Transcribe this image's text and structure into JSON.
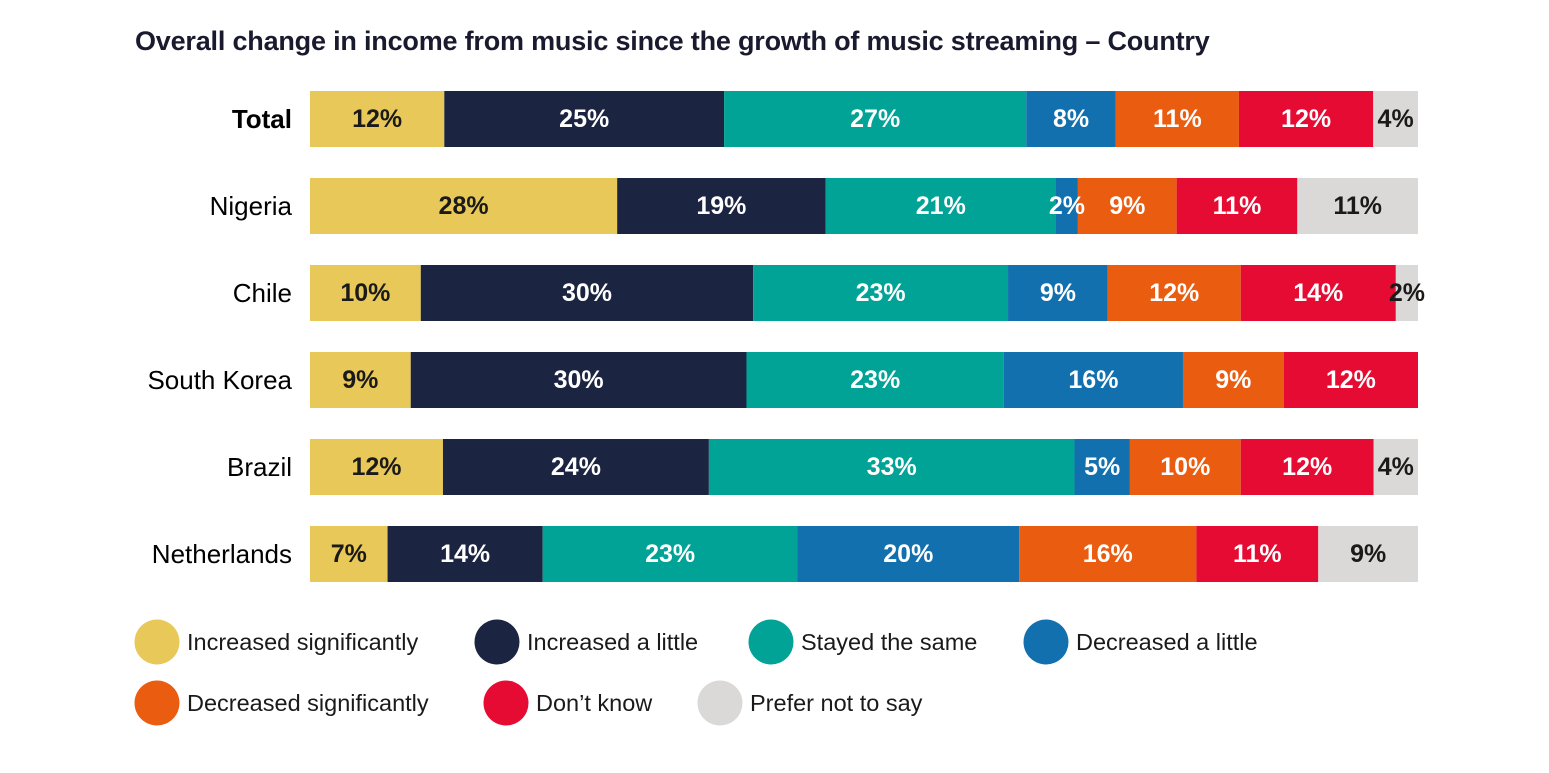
{
  "chart_data": {
    "type": "bar",
    "orientation": "horizontal",
    "stacked": true,
    "normalized": true,
    "title": "Overall change in income from music since the growth of music streaming – Country",
    "xlabel": "",
    "ylabel": "",
    "xlim": [
      0,
      100
    ],
    "grid": false,
    "legend_position": "bottom-left",
    "categories": [
      "Total",
      "Nigeria",
      "Chile",
      "South Korea",
      "Brazil",
      "Netherlands"
    ],
    "bold_categories": [
      "Total"
    ],
    "series": [
      {
        "name": "Increased significantly",
        "color": "#E8C858",
        "label_color": "#1a1a1a",
        "values": [
          12,
          28,
          10,
          9,
          12,
          7
        ],
        "labels": [
          "12%",
          "28%",
          "10%",
          "9%",
          "12%",
          "7%"
        ]
      },
      {
        "name": "Increased a little",
        "color": "#1B2440",
        "label_color": "#ffffff",
        "values": [
          25,
          19,
          30,
          30,
          24,
          14
        ],
        "labels": [
          "25%",
          "19%",
          "30%",
          "30%",
          "24%",
          "14%"
        ]
      },
      {
        "name": "Stayed the same",
        "color": "#00A396",
        "label_color": "#ffffff",
        "values": [
          27,
          21,
          23,
          23,
          33,
          23
        ],
        "labels": [
          "27%",
          "21%",
          "23%",
          "23%",
          "33%",
          "23%"
        ]
      },
      {
        "name": "Decreased a little",
        "color": "#1270AE",
        "label_color": "#ffffff",
        "values": [
          8,
          2,
          9,
          16,
          5,
          20
        ],
        "labels": [
          "8%",
          "2%",
          "9%",
          "16%",
          "5%",
          "20%"
        ]
      },
      {
        "name": "Decreased significantly",
        "color": "#EA5C10",
        "label_color": "#ffffff",
        "values": [
          11,
          9,
          12,
          9,
          10,
          16
        ],
        "labels": [
          "11%",
          "9%",
          "12%",
          "9%",
          "10%",
          "16%"
        ]
      },
      {
        "name": "Don’t know",
        "color": "#E50B33",
        "label_color": "#ffffff",
        "values": [
          12,
          11,
          14,
          12,
          12,
          11
        ],
        "labels": [
          "12%",
          "11%",
          "14%",
          "12%",
          "12%",
          "11%"
        ]
      },
      {
        "name": "Prefer not to say",
        "color": "#DAD9D7",
        "label_color": "#1a1a1a",
        "values": [
          4,
          11,
          2,
          0,
          4,
          9
        ],
        "labels": [
          "4%",
          "11%",
          "2%",
          "",
          "4%",
          "9%"
        ]
      }
    ]
  }
}
